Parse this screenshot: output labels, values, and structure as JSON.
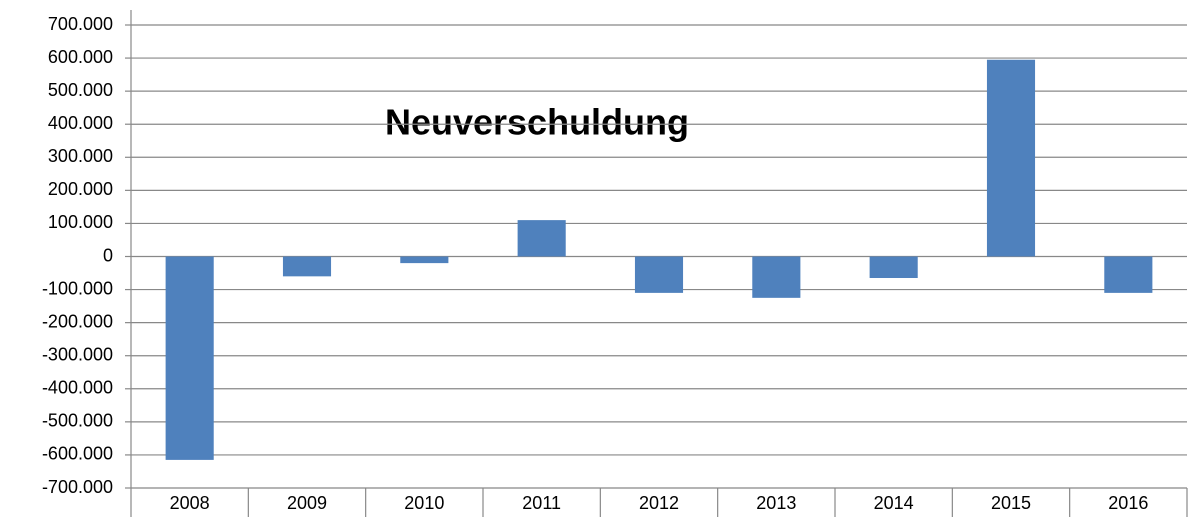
{
  "chart_data": {
    "type": "bar",
    "title": "Neuverschuldung",
    "categories": [
      "2008",
      "2009",
      "2010",
      "2011",
      "2012",
      "2013",
      "2014",
      "2015",
      "2016"
    ],
    "values": [
      -615000,
      -60000,
      -20000,
      110000,
      -110000,
      -125000,
      -65000,
      595000,
      -110000
    ],
    "color": "#4f81bd",
    "ylim": [
      -700000,
      700000
    ],
    "yticks": [
      {
        "value": -700000,
        "label": "-700.000"
      },
      {
        "value": -600000,
        "label": "-600.000"
      },
      {
        "value": -500000,
        "label": "-500.000"
      },
      {
        "value": -400000,
        "label": "-400.000"
      },
      {
        "value": -300000,
        "label": "-300.000"
      },
      {
        "value": -200000,
        "label": "-200.000"
      },
      {
        "value": -100000,
        "label": "-100.000"
      },
      0,
      {
        "value": 100000,
        "label": "100.000"
      },
      {
        "value": 200000,
        "label": "200.000"
      },
      {
        "value": 300000,
        "label": "300.000"
      },
      {
        "value": 400000,
        "label": "400.000"
      },
      {
        "value": 500000,
        "label": "500.000"
      },
      {
        "value": 600000,
        "label": "600.000"
      },
      {
        "value": 700000,
        "label": "700.000"
      }
    ],
    "grid": true
  }
}
